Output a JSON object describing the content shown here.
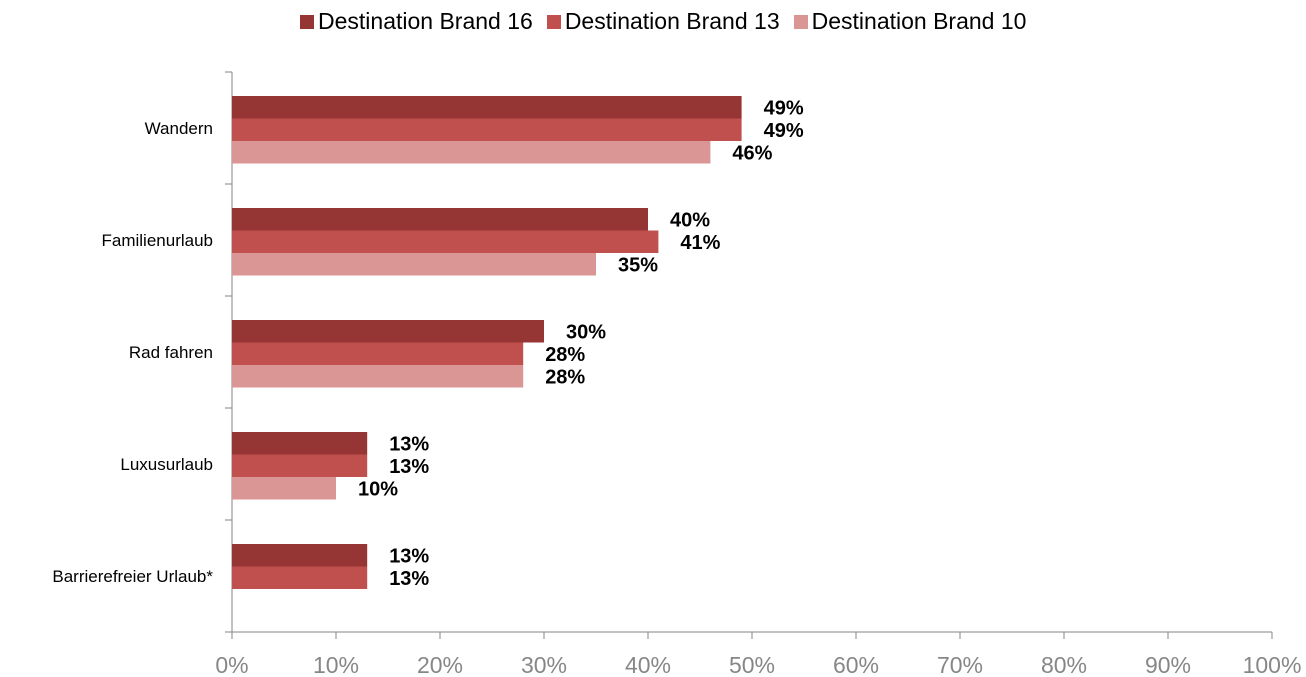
{
  "chart_data": {
    "type": "bar",
    "orientation": "horizontal",
    "categories": [
      "Wandern",
      "Familienurlaub",
      "Rad fahren",
      "Luxusurlaub",
      "Barrierefreier Urlaub*"
    ],
    "series": [
      {
        "name": "Destination Brand 16",
        "color": "#963634",
        "values": [
          49,
          40,
          30,
          13,
          13
        ]
      },
      {
        "name": "Destination Brand 13",
        "color": "#C0504D",
        "values": [
          49,
          41,
          28,
          13,
          13
        ]
      },
      {
        "name": "Destination Brand 10",
        "color": "#DA9694",
        "values": [
          46,
          35,
          28,
          10,
          null
        ]
      }
    ],
    "data_labels": [
      [
        "49%",
        "49%",
        "46%"
      ],
      [
        "40%",
        "41%",
        "35%"
      ],
      [
        "30%",
        "28%",
        "28%"
      ],
      [
        "13%",
        "13%",
        "10%"
      ],
      [
        "13%",
        "13%",
        ""
      ]
    ],
    "xlim": [
      0,
      100
    ],
    "x_ticks": [
      "0%",
      "10%",
      "20%",
      "30%",
      "40%",
      "50%",
      "60%",
      "70%",
      "80%",
      "90%",
      "100%"
    ],
    "legend_position": "top",
    "grid": false
  }
}
